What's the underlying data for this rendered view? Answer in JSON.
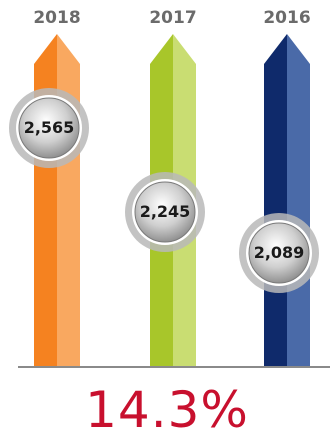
{
  "chart_data": {
    "type": "bar",
    "categories": [
      "2018",
      "2017",
      "2016"
    ],
    "values": [
      2565,
      2245,
      2089
    ],
    "value_labels": [
      "2,565",
      "2,245",
      "2,089"
    ],
    "title": "",
    "xlabel": "",
    "ylabel": "",
    "colors": [
      {
        "dark": "#f58220",
        "light": "#f9a860"
      },
      {
        "dark": "#a8c62a",
        "light": "#c9dd72"
      },
      {
        "dark": "#0f2a6b",
        "light": "#4a6aa8"
      }
    ],
    "annotation": "14.3%"
  }
}
